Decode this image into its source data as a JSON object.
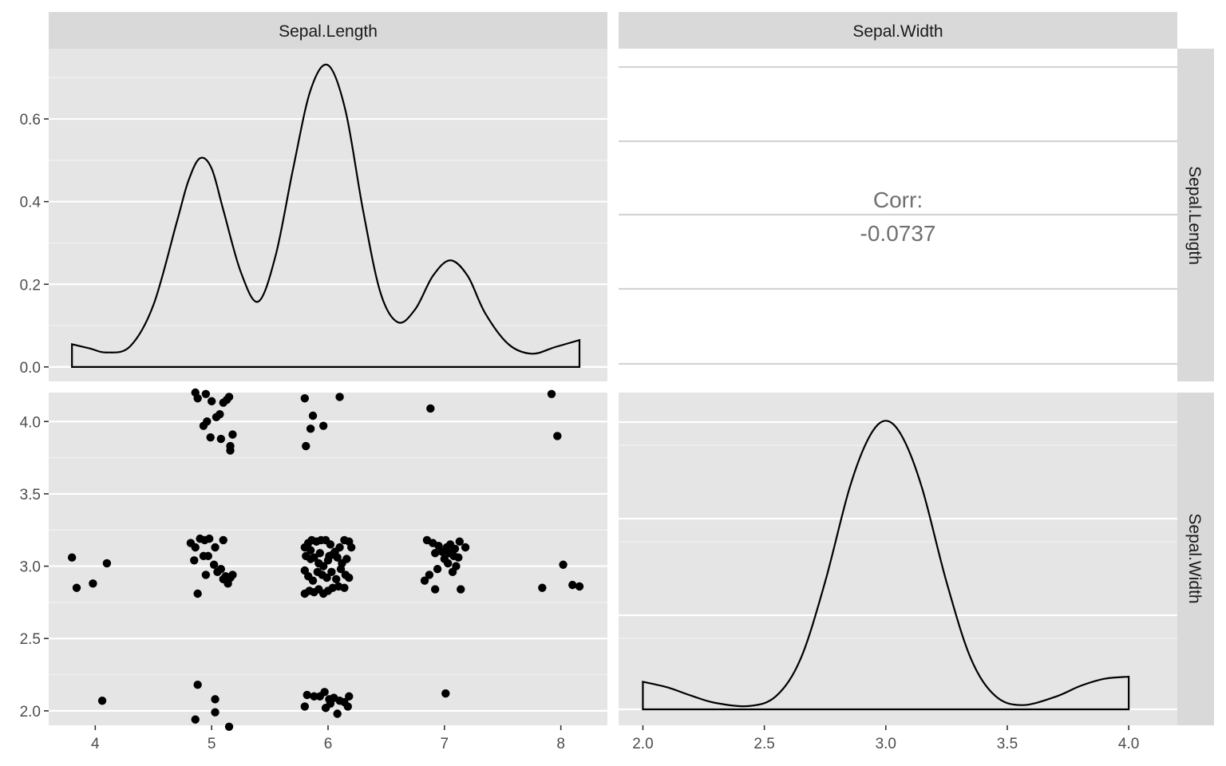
{
  "chart_data": {
    "type": "scatter",
    "title": "",
    "variables": [
      "Sepal.Length",
      "Sepal.Width"
    ],
    "column_strips": [
      "Sepal.Length",
      "Sepal.Width"
    ],
    "row_strips": [
      "Sepal.Length",
      "Sepal.Width"
    ],
    "axes": {
      "sepal_length": {
        "range": [
          3.6,
          8.4
        ],
        "ticks": [
          "4",
          "5",
          "6",
          "7",
          "8"
        ],
        "tick_values": [
          4,
          5,
          6,
          7,
          8
        ]
      },
      "sepal_width": {
        "range": [
          1.9,
          4.2
        ],
        "ticks": [
          "2.0",
          "2.5",
          "3.0",
          "3.5",
          "4.0"
        ],
        "tick_values": [
          2.0,
          2.5,
          3.0,
          3.5,
          4.0
        ]
      },
      "density": {
        "range": [
          -0.035,
          0.77
        ],
        "ticks": [
          "0.0",
          "0.2",
          "0.4",
          "0.6"
        ],
        "tick_values": [
          0.0,
          0.2,
          0.4,
          0.6
        ]
      }
    },
    "correlation": {
      "label": "Corr:",
      "value": "-0.0737"
    },
    "sepal_length_density": {
      "x": [
        3.8,
        3.95,
        4.1,
        4.3,
        4.5,
        4.7,
        4.8,
        4.9,
        5.0,
        5.1,
        5.25,
        5.4,
        5.55,
        5.7,
        5.85,
        6.0,
        6.15,
        6.3,
        6.45,
        6.6,
        6.75,
        6.9,
        7.05,
        7.2,
        7.35,
        7.55,
        7.75,
        7.95,
        8.16
      ],
      "y": [
        0.055,
        0.045,
        0.035,
        0.05,
        0.15,
        0.35,
        0.45,
        0.505,
        0.48,
        0.38,
        0.23,
        0.158,
        0.27,
        0.48,
        0.67,
        0.73,
        0.62,
        0.38,
        0.18,
        0.108,
        0.14,
        0.22,
        0.258,
        0.22,
        0.13,
        0.055,
        0.032,
        0.048,
        0.065
      ]
    },
    "sepal_width_density": {
      "x": [
        2.0,
        2.1,
        2.2,
        2.3,
        2.44,
        2.55,
        2.65,
        2.75,
        2.85,
        2.93,
        3.0,
        3.07,
        3.15,
        3.25,
        3.35,
        3.45,
        3.56,
        3.7,
        3.8,
        3.9,
        4.0
      ],
      "y": [
        0.065,
        0.052,
        0.032,
        0.015,
        0.008,
        0.032,
        0.12,
        0.3,
        0.52,
        0.64,
        0.68,
        0.64,
        0.52,
        0.3,
        0.12,
        0.032,
        0.01,
        0.03,
        0.055,
        0.072,
        0.077
      ]
    },
    "density_y_range": [
      0,
      0.69
    ],
    "scatter": {
      "xlabel": "Sepal.Length",
      "ylabel": "Sepal.Width",
      "points": [
        [
          3.8,
          3.06
        ],
        [
          3.84,
          2.85
        ],
        [
          3.98,
          2.88
        ],
        [
          4.1,
          3.02
        ],
        [
          4.06,
          2.07
        ],
        [
          4.86,
          4.2
        ],
        [
          4.88,
          4.16
        ],
        [
          4.95,
          4.19
        ],
        [
          5.0,
          4.14
        ],
        [
          5.04,
          4.03
        ],
        [
          5.07,
          4.05
        ],
        [
          5.1,
          4.13
        ],
        [
          5.13,
          4.15
        ],
        [
          5.15,
          4.17
        ],
        [
          4.93,
          3.97
        ],
        [
          4.96,
          4.0
        ],
        [
          4.99,
          3.89
        ],
        [
          5.08,
          3.88
        ],
        [
          5.16,
          3.83
        ],
        [
          5.16,
          3.8
        ],
        [
          5.18,
          3.91
        ],
        [
          4.82,
          3.16
        ],
        [
          4.86,
          3.13
        ],
        [
          4.9,
          3.19
        ],
        [
          4.94,
          3.18
        ],
        [
          4.98,
          3.19
        ],
        [
          5.03,
          3.13
        ],
        [
          5.1,
          3.18
        ],
        [
          4.85,
          3.04
        ],
        [
          4.93,
          3.07
        ],
        [
          4.97,
          3.07
        ],
        [
          5.02,
          3.01
        ],
        [
          5.08,
          2.98
        ],
        [
          5.12,
          2.93
        ],
        [
          5.16,
          2.92
        ],
        [
          5.18,
          2.94
        ],
        [
          4.95,
          2.94
        ],
        [
          5.05,
          2.96
        ],
        [
          5.1,
          2.91
        ],
        [
          5.14,
          2.88
        ],
        [
          4.88,
          2.81
        ],
        [
          4.88,
          2.18
        ],
        [
          4.86,
          1.94
        ],
        [
          5.03,
          2.08
        ],
        [
          5.03,
          1.99
        ],
        [
          5.15,
          1.89
        ],
        [
          5.8,
          3.13
        ],
        [
          5.83,
          3.16
        ],
        [
          5.86,
          3.18
        ],
        [
          5.9,
          3.17
        ],
        [
          5.94,
          3.18
        ],
        [
          5.98,
          3.18
        ],
        [
          6.02,
          3.15
        ],
        [
          6.06,
          3.1
        ],
        [
          6.1,
          3.13
        ],
        [
          6.14,
          3.18
        ],
        [
          6.18,
          3.17
        ],
        [
          5.81,
          3.07
        ],
        [
          5.85,
          3.05
        ],
        [
          5.88,
          3.06
        ],
        [
          5.92,
          3.02
        ],
        [
          5.96,
          3.0
        ],
        [
          6.0,
          3.04
        ],
        [
          6.04,
          3.08
        ],
        [
          6.08,
          3.06
        ],
        [
          6.12,
          3.02
        ],
        [
          6.16,
          3.05
        ],
        [
          5.8,
          2.97
        ],
        [
          5.83,
          2.93
        ],
        [
          5.87,
          2.9
        ],
        [
          5.91,
          2.96
        ],
        [
          5.95,
          2.94
        ],
        [
          5.99,
          2.92
        ],
        [
          6.03,
          2.96
        ],
        [
          6.07,
          2.91
        ],
        [
          6.11,
          2.98
        ],
        [
          6.15,
          2.94
        ],
        [
          6.18,
          2.92
        ],
        [
          5.8,
          2.81
        ],
        [
          5.84,
          2.83
        ],
        [
          5.88,
          2.82
        ],
        [
          5.92,
          2.84
        ],
        [
          5.96,
          2.81
        ],
        [
          6.0,
          2.83
        ],
        [
          6.04,
          2.85
        ],
        [
          6.09,
          2.86
        ],
        [
          6.14,
          2.85
        ],
        [
          5.85,
          3.11
        ],
        [
          6.2,
          3.13
        ],
        [
          5.93,
          3.09
        ],
        [
          6.01,
          3.07
        ],
        [
          5.8,
          4.16
        ],
        [
          5.87,
          4.04
        ],
        [
          5.96,
          3.97
        ],
        [
          5.85,
          3.95
        ],
        [
          5.81,
          3.83
        ],
        [
          6.1,
          4.17
        ],
        [
          5.82,
          2.11
        ],
        [
          5.88,
          2.1
        ],
        [
          5.93,
          2.1
        ],
        [
          5.97,
          2.13
        ],
        [
          6.01,
          2.08
        ],
        [
          6.05,
          2.09
        ],
        [
          6.1,
          2.07
        ],
        [
          6.14,
          2.06
        ],
        [
          6.18,
          2.1
        ],
        [
          5.8,
          2.03
        ],
        [
          5.98,
          2.02
        ],
        [
          6.02,
          2.05
        ],
        [
          6.08,
          1.98
        ],
        [
          6.17,
          2.03
        ],
        [
          6.85,
          3.18
        ],
        [
          6.9,
          3.16
        ],
        [
          6.95,
          3.14
        ],
        [
          6.98,
          3.1
        ],
        [
          7.02,
          3.13
        ],
        [
          7.05,
          3.15
        ],
        [
          7.09,
          3.12
        ],
        [
          7.13,
          3.17
        ],
        [
          7.18,
          3.13
        ],
        [
          6.92,
          3.09
        ],
        [
          7.0,
          3.05
        ],
        [
          7.04,
          3.09
        ],
        [
          7.08,
          3.07
        ],
        [
          7.12,
          3.06
        ],
        [
          6.94,
          2.98
        ],
        [
          7.03,
          3.02
        ],
        [
          7.07,
          2.96
        ],
        [
          7.1,
          3.0
        ],
        [
          6.87,
          2.94
        ],
        [
          6.83,
          2.9
        ],
        [
          6.92,
          2.84
        ],
        [
          7.14,
          2.84
        ],
        [
          6.88,
          4.09
        ],
        [
          7.01,
          2.12
        ],
        [
          7.92,
          4.19
        ],
        [
          7.97,
          3.9
        ],
        [
          8.02,
          3.01
        ],
        [
          7.84,
          2.85
        ],
        [
          8.1,
          2.87
        ],
        [
          8.16,
          2.86
        ]
      ]
    }
  }
}
